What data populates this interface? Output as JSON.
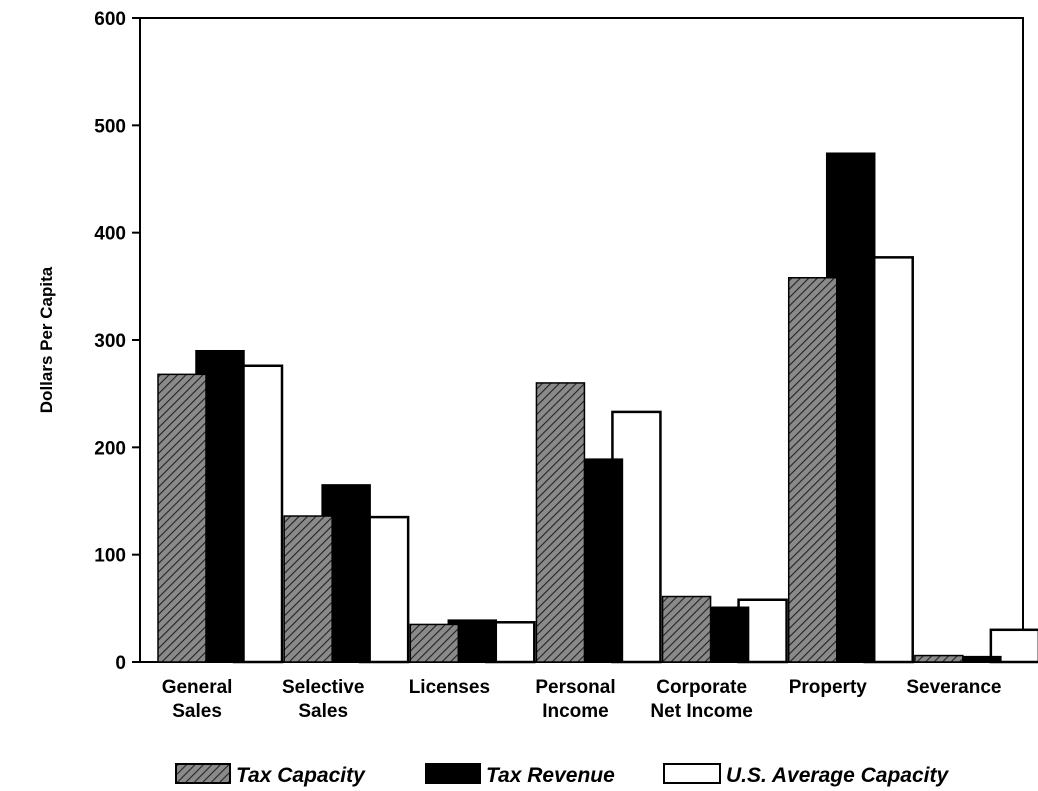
{
  "chart_data": {
    "type": "bar",
    "title": "",
    "xlabel": "",
    "ylabel": "Dollars Per Capita",
    "ylim": [
      0,
      600
    ],
    "yticks": [
      "0",
      "100",
      "200",
      "300",
      "400",
      "500",
      "600"
    ],
    "grid": false,
    "legend_position": "bottom",
    "categories": [
      [
        "General",
        "Sales"
      ],
      [
        "Selective",
        "Sales"
      ],
      [
        "Licenses"
      ],
      [
        "Personal",
        "Income"
      ],
      [
        "Corporate",
        "Net Income"
      ],
      [
        "Property"
      ],
      [
        "Severance"
      ]
    ],
    "series": [
      {
        "name": "Tax Capacity",
        "pattern": "hatched",
        "values": [
          268,
          136,
          35,
          260,
          61,
          358,
          6
        ]
      },
      {
        "name": "Tax Revenue",
        "pattern": "solid",
        "values": [
          290,
          165,
          39,
          189,
          51,
          474,
          5
        ]
      },
      {
        "name": "U.S. Average Capacity",
        "pattern": "outline",
        "values": [
          276,
          135,
          37,
          233,
          58,
          377,
          30
        ]
      }
    ],
    "colors": {
      "ink": "#000000",
      "background": "#ffffff"
    }
  }
}
